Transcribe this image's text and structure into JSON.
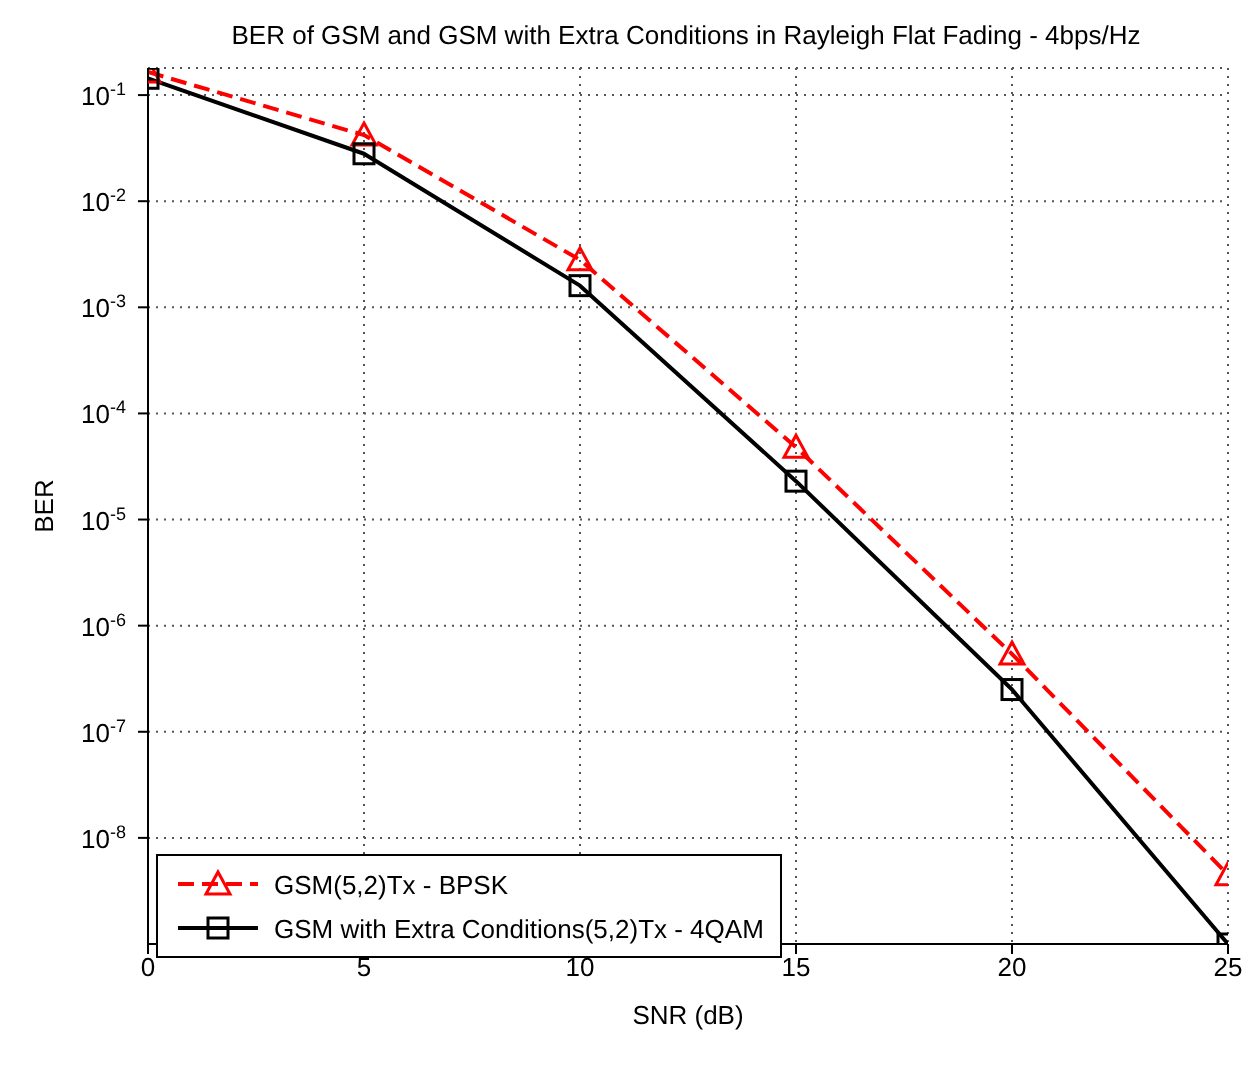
{
  "chart_data": {
    "type": "line",
    "title": "BER of GSM and GSM with Extra Conditions in Rayleigh Flat Fading - 4bps/Hz",
    "xlabel": "SNR (dB)",
    "ylabel": "BER",
    "log": "y",
    "x": [
      0,
      5,
      10,
      15,
      20,
      25
    ],
    "series": [
      {
        "name": "GSM(5,2)Tx - BPSK",
        "color": "#ff0000",
        "marker": "triangle",
        "line_style": "dashed",
        "values": [
          0.165,
          0.042,
          0.0028,
          4.8e-05,
          5.4e-07,
          4.5e-09
        ]
      },
      {
        "name": "GSM with Extra Conditions(5,2)Tx - 4QAM",
        "color": "#000000",
        "marker": "square",
        "line_style": "solid",
        "values": [
          0.144,
          0.028,
          0.0016,
          2.3e-05,
          2.5e-07,
          1e-09
        ]
      }
    ],
    "xlim": [
      0,
      25
    ],
    "xticks": [
      0,
      5,
      10,
      15,
      20,
      25
    ],
    "ylim": [
      1e-09,
      0.18
    ],
    "yticks": [
      {
        "value": 0.1,
        "label": "10$^{-1}$"
      },
      {
        "value": 0.01,
        "label": "10$^{-2}$"
      },
      {
        "value": 0.001,
        "label": "10$^{-3}$"
      },
      {
        "value": 0.0001,
        "label": "10$^{-4}$"
      },
      {
        "value": 1e-05,
        "label": "10$^{-5}$"
      },
      {
        "value": 1e-06,
        "label": "10$^{-6}$"
      },
      {
        "value": 1e-07,
        "label": "10$^{-7}$"
      },
      {
        "value": 1e-08,
        "label": "10$^{-8}$"
      }
    ],
    "grid": true,
    "legend": "bottom left"
  }
}
